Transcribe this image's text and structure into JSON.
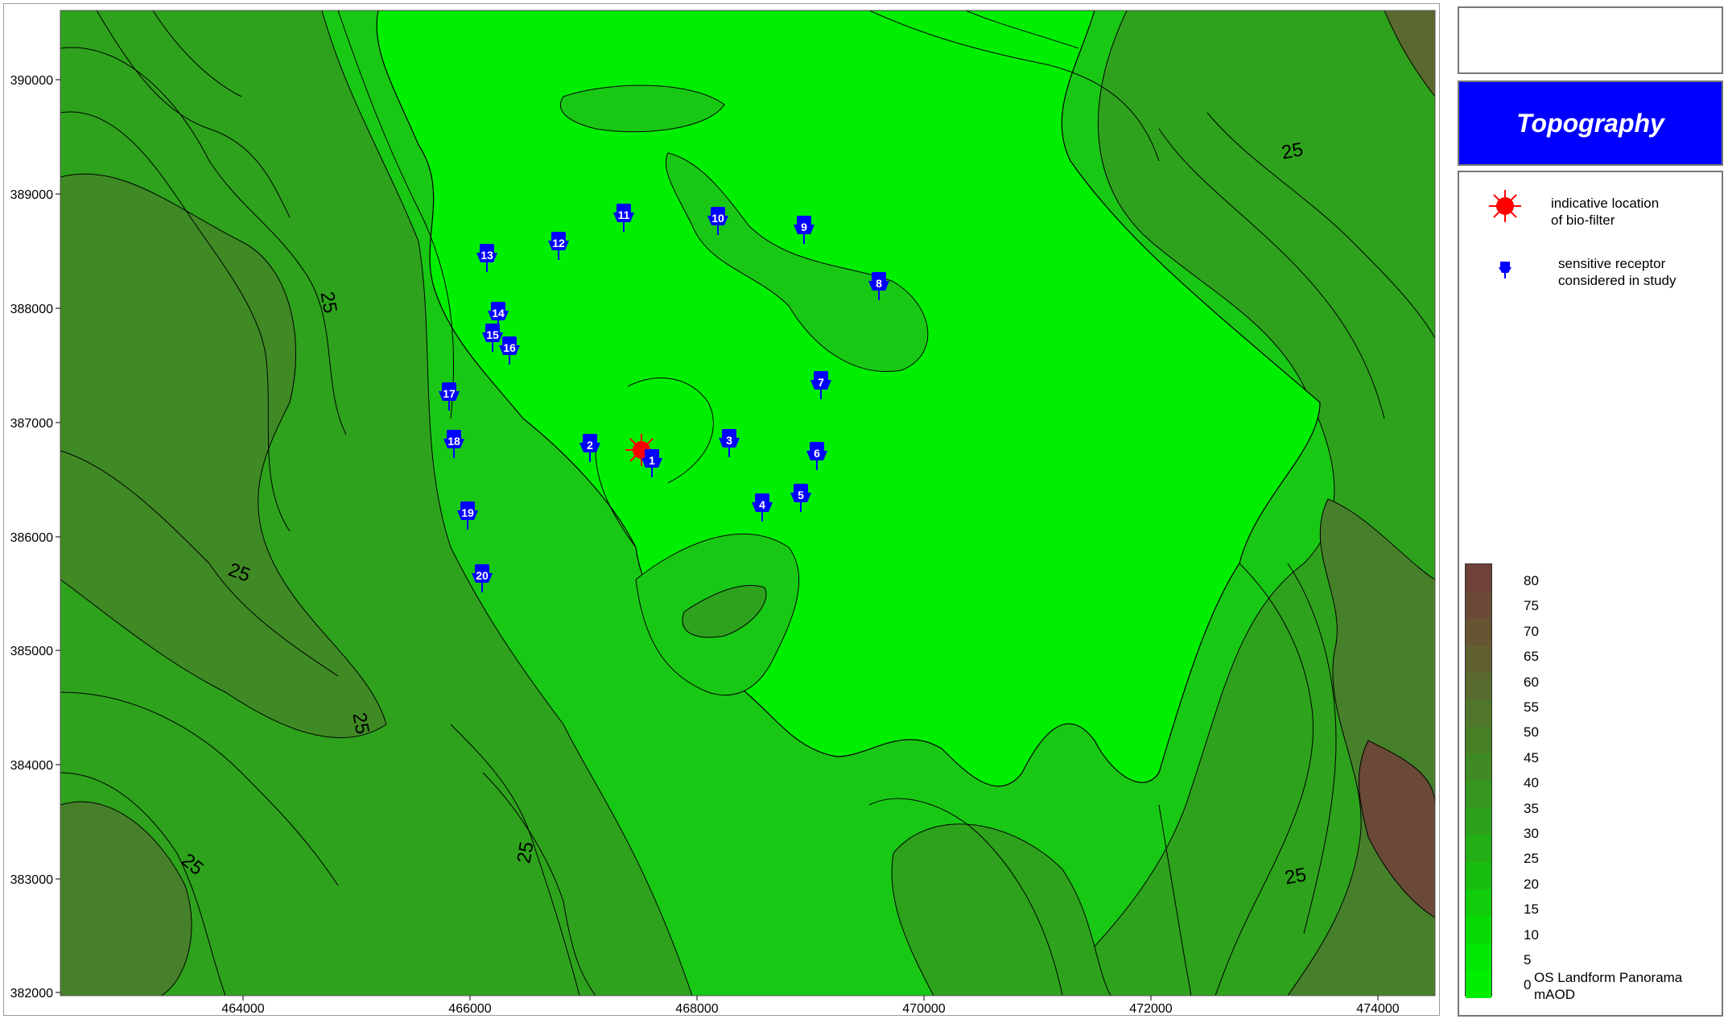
{
  "title": "Topography",
  "legend": {
    "biofilter_label": "indicative location\nof bio-filter",
    "receptor_label": "sensitive receptor\nconsidered in study",
    "source_label": "OS Landform Panorama\nmAOD"
  },
  "colorbar": {
    "levels": [
      "80",
      "75",
      "70",
      "65",
      "60",
      "55",
      "50",
      "45",
      "40",
      "35",
      "30",
      "25",
      "20",
      "15",
      "10",
      "5",
      "0"
    ],
    "colors": [
      "#6e4238",
      "#6a4a36",
      "#665433",
      "#605f30",
      "#586a2d",
      "#4f762a",
      "#477f27",
      "#3f8a24",
      "#359620",
      "#2ca21b",
      "#22af16",
      "#19bd10",
      "#10cc0b",
      "#08da06",
      "#02e603",
      "#00ee00"
    ]
  },
  "map": {
    "x_ticks": [
      "464000",
      "466000",
      "468000",
      "470000",
      "472000",
      "474000"
    ],
    "y_ticks": [
      "390000",
      "389000",
      "388000",
      "387000",
      "386000",
      "385000",
      "384000",
      "383000",
      "382000"
    ],
    "contour_label": "25",
    "colors": {
      "low": "#00ee00",
      "mid": "#19c814",
      "high": "#47802b",
      "peak": "#6a4a36"
    }
  },
  "receptors": [
    {
      "id": "1"
    },
    {
      "id": "2"
    },
    {
      "id": "3"
    },
    {
      "id": "4"
    },
    {
      "id": "5"
    },
    {
      "id": "6"
    },
    {
      "id": "7"
    },
    {
      "id": "8"
    },
    {
      "id": "9"
    },
    {
      "id": "10"
    },
    {
      "id": "11"
    },
    {
      "id": "12"
    },
    {
      "id": "13"
    },
    {
      "id": "14"
    },
    {
      "id": "15"
    },
    {
      "id": "16"
    },
    {
      "id": "17"
    },
    {
      "id": "18"
    },
    {
      "id": "19"
    },
    {
      "id": "20"
    }
  ]
}
